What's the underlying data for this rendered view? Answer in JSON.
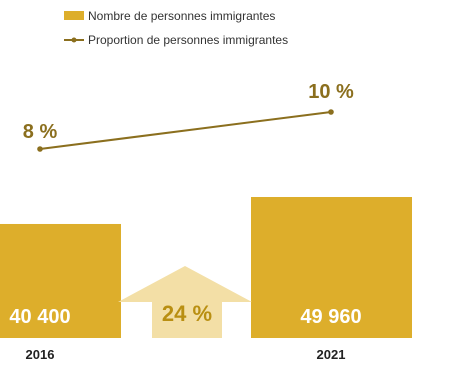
{
  "legend": {
    "bar_label": "Nombre de personnes immigrantes",
    "line_label": "Proportion de personnes immigrantes"
  },
  "colors": {
    "bar": "#ddae2b",
    "line": "#8b6f1e",
    "arrow": "#f3dfa6",
    "growth_text": "#b98f12"
  },
  "chart_data": {
    "type": "bar",
    "categories": [
      "2016",
      "2021"
    ],
    "series": [
      {
        "name": "Nombre de personnes immigrantes",
        "type": "bar",
        "values": [
          40400,
          49960
        ],
        "labels": [
          "40 400",
          "49 960"
        ]
      },
      {
        "name": "Proportion de personnes immigrantes",
        "type": "line",
        "values": [
          8,
          10
        ],
        "labels": [
          "8 %",
          "10 %"
        ]
      }
    ],
    "annotations": [
      {
        "text": "24 %",
        "kind": "growth-arrow"
      }
    ]
  }
}
